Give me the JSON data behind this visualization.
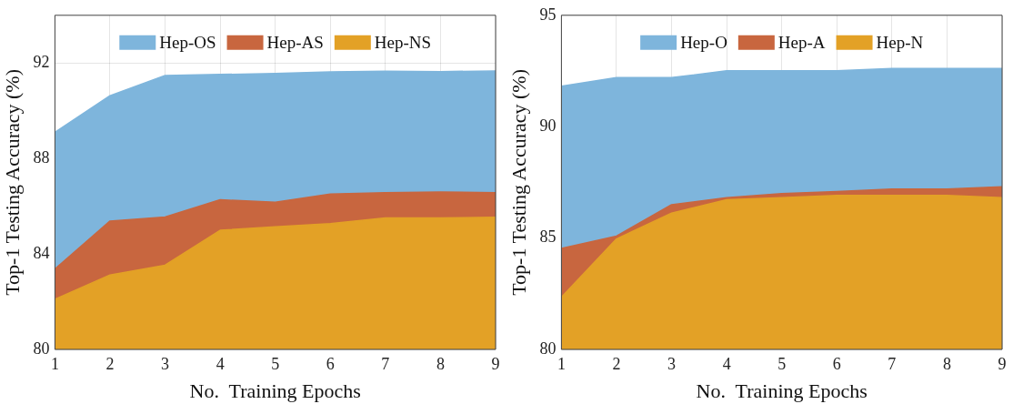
{
  "chart_data": [
    {
      "type": "area",
      "xlabel": "No.  Training Epochs",
      "ylabel": "Top-1 Testing Accuracy (%)",
      "x": [
        1,
        2,
        3,
        4,
        5,
        6,
        7,
        8,
        9
      ],
      "xlim": [
        1,
        9
      ],
      "xticks": [
        1,
        2,
        3,
        4,
        5,
        6,
        7,
        8,
        9
      ],
      "ylim": [
        80,
        94
      ],
      "yticks": [
        80,
        84,
        88,
        92
      ],
      "grid": true,
      "legend": "top",
      "series": [
        {
          "name": "Hep-OS",
          "color": "#7eb5dc",
          "values": [
            89.1,
            90.63,
            91.48,
            91.52,
            91.56,
            91.63,
            91.66,
            91.64,
            91.67
          ]
        },
        {
          "name": "Hep-AS",
          "color": "#c8663f",
          "values": [
            83.37,
            85.38,
            85.55,
            86.27,
            86.17,
            86.51,
            86.57,
            86.6,
            86.57
          ]
        },
        {
          "name": "Hep-NS",
          "color": "#e3a126",
          "values": [
            82.1,
            83.12,
            83.53,
            84.99,
            85.14,
            85.27,
            85.51,
            85.51,
            85.54
          ]
        }
      ]
    },
    {
      "type": "area",
      "xlabel": "No.  Training Epochs",
      "ylabel": "Top-1 Testing Accuracy (%)",
      "x": [
        1,
        2,
        3,
        4,
        5,
        6,
        7,
        8,
        9
      ],
      "xlim": [
        1,
        9
      ],
      "xticks": [
        1,
        2,
        3,
        4,
        5,
        6,
        7,
        8,
        9
      ],
      "ylim": [
        80,
        95
      ],
      "yticks": [
        80,
        85,
        90,
        95
      ],
      "grid": true,
      "legend": "top",
      "series": [
        {
          "name": "Hep-O",
          "color": "#7eb5dc",
          "values": [
            91.82,
            92.2,
            92.2,
            92.51,
            92.51,
            92.51,
            92.61,
            92.61,
            92.61
          ]
        },
        {
          "name": "Hep-A",
          "color": "#c8663f",
          "values": [
            84.53,
            85.09,
            86.5,
            86.81,
            87.0,
            87.09,
            87.2,
            87.2,
            87.3
          ]
        },
        {
          "name": "Hep-N",
          "color": "#e3a126",
          "values": [
            82.34,
            84.96,
            86.12,
            86.72,
            86.81,
            86.91,
            86.91,
            86.91,
            86.81
          ]
        }
      ]
    }
  ]
}
